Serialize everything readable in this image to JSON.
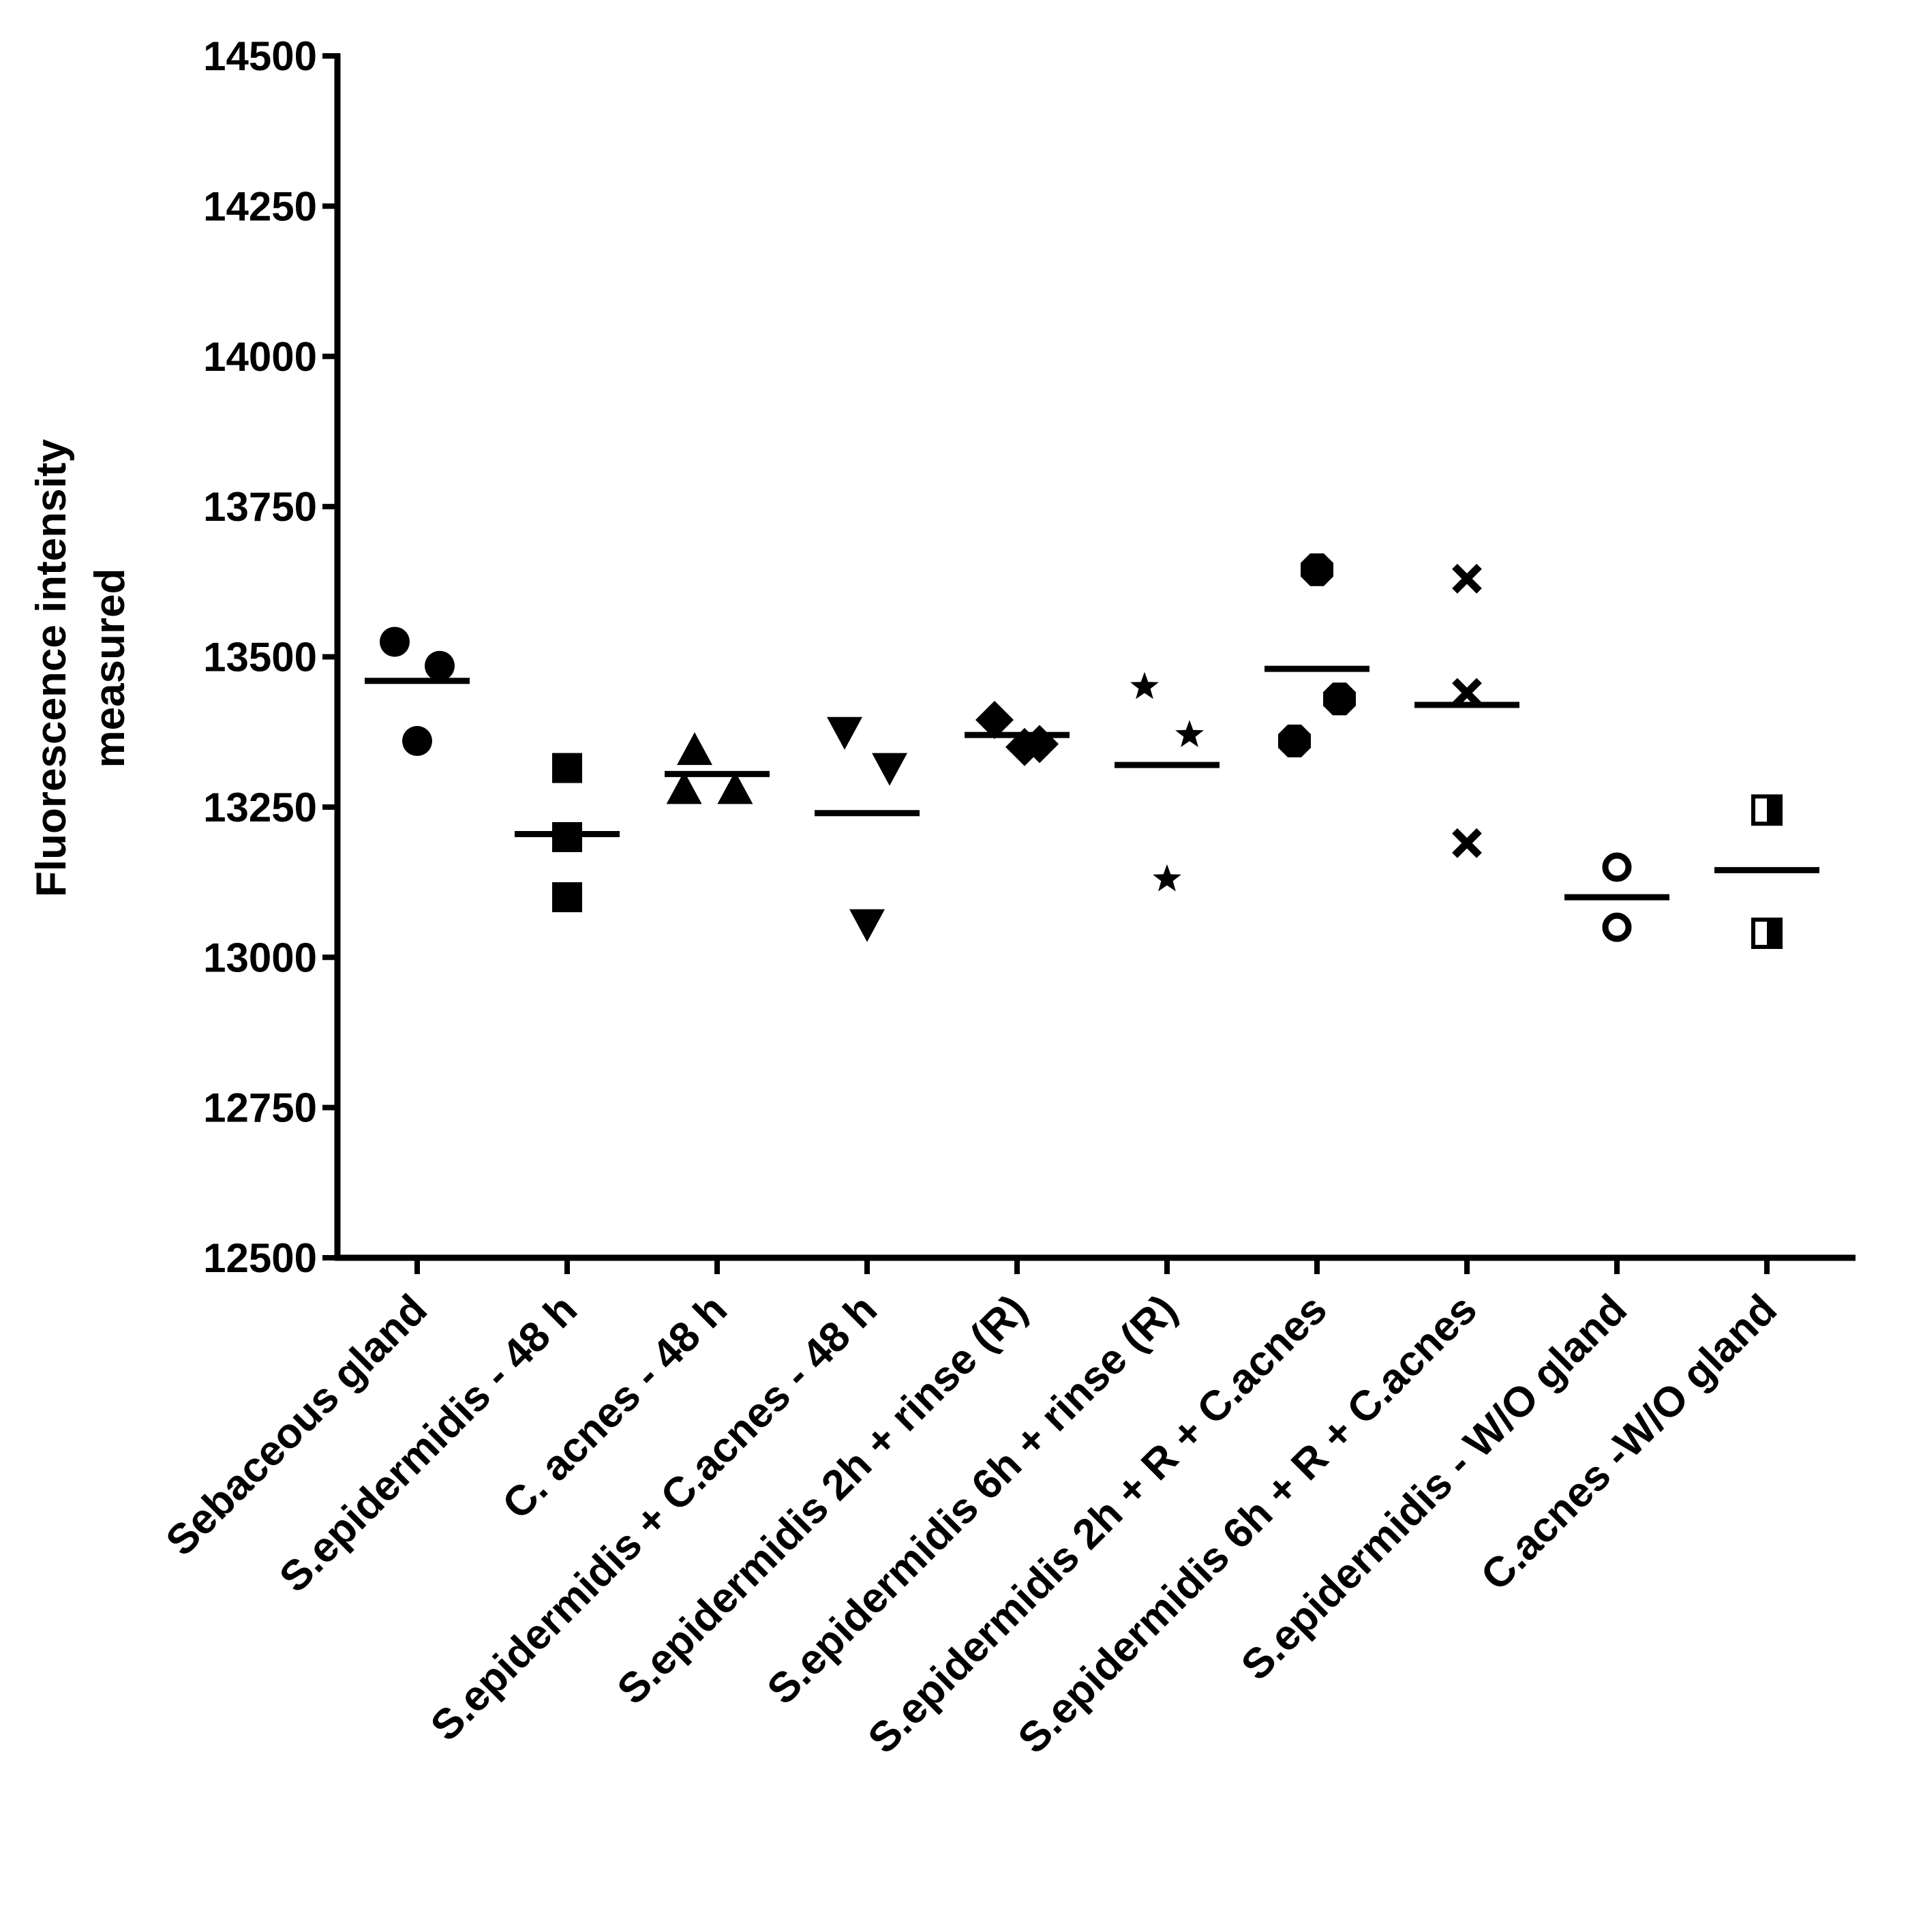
{
  "chart_data": {
    "type": "scatter",
    "title": "",
    "xlabel": "",
    "ylabel": [
      "Fluorescence intensity",
      "measured"
    ],
    "ylim": [
      12500,
      14500
    ],
    "yticks": [
      12500,
      12750,
      13000,
      13250,
      13500,
      13750,
      14000,
      14250,
      14500
    ],
    "grid": false,
    "legend": "none",
    "categories": [
      "Sebaceous gland",
      "S.epidermidis - 48 h",
      "C. acnes - 48 h",
      "S.epidermidis + C.acnes - 48 h",
      "S.epidermidis 2h + rinse (R)",
      "S.epidermidis 6h + rinse (R)",
      "S.epidermidis 2h + R + C.acnes",
      "S.epidermidis 6h + R + C.acnes",
      "S.epidermidis - W/O gland",
      "C.acnes -W/O gland"
    ],
    "series": [
      {
        "name": "Sebaceous gland",
        "marker": "circle",
        "points": [
          {
            "offset": -0.15,
            "value": 13525
          },
          {
            "offset": 0.15,
            "value": 13485
          },
          {
            "offset": 0,
            "value": 13360
          }
        ],
        "mean": 13460
      },
      {
        "name": "S.epidermidis - 48 h",
        "marker": "square",
        "points": [
          {
            "offset": 0,
            "value": 13315
          },
          {
            "offset": 0,
            "value": 13200
          },
          {
            "offset": 0,
            "value": 13100
          }
        ],
        "mean": 13205
      },
      {
        "name": "C. acnes - 48 h",
        "marker": "triangle-up",
        "points": [
          {
            "offset": -0.15,
            "value": 13345
          },
          {
            "offset": 0.12,
            "value": 13280
          },
          {
            "offset": -0.22,
            "value": 13280
          }
        ],
        "mean": 13305
      },
      {
        "name": "S.epidermidis + C.acnes - 48 h",
        "marker": "triangle-down",
        "points": [
          {
            "offset": -0.15,
            "value": 13375
          },
          {
            "offset": 0.15,
            "value": 13315
          },
          {
            "offset": 0,
            "value": 13055
          }
        ],
        "mean": 13240
      },
      {
        "name": "S.epidermidis 2h + rinse (R)",
        "marker": "diamond",
        "points": [
          {
            "offset": -0.15,
            "value": 13395
          },
          {
            "offset": 0.15,
            "value": 13355
          },
          {
            "offset": 0.05,
            "value": 13350
          }
        ],
        "mean": 13370
      },
      {
        "name": "S.epidermidis 6h + rinse (R)",
        "marker": "star",
        "points": [
          {
            "offset": -0.15,
            "value": 13450
          },
          {
            "offset": 0.15,
            "value": 13370
          },
          {
            "offset": 0,
            "value": 13130
          }
        ],
        "mean": 13320
      },
      {
        "name": "S.epidermidis 2h + R + C.acnes",
        "marker": "octagon",
        "points": [
          {
            "offset": 0,
            "value": 13645
          },
          {
            "offset": 0.15,
            "value": 13430
          },
          {
            "offset": -0.15,
            "value": 13360
          }
        ],
        "mean": 13480
      },
      {
        "name": "S.epidermidis 6h + R + C.acnes",
        "marker": "x",
        "points": [
          {
            "offset": 0,
            "value": 13630
          },
          {
            "offset": 0,
            "value": 13440
          },
          {
            "offset": 0,
            "value": 13190
          }
        ],
        "mean": 13420
      },
      {
        "name": "S.epidermidis - W/O gland",
        "marker": "circle-open",
        "points": [
          {
            "offset": 0,
            "value": 13150
          },
          {
            "offset": 0,
            "value": 13050
          }
        ],
        "mean": 13100
      },
      {
        "name": "C.acnes -W/O gland",
        "marker": "half-square",
        "points": [
          {
            "offset": 0,
            "value": 13245
          },
          {
            "offset": 0,
            "value": 13040
          }
        ],
        "mean": 13145
      }
    ]
  }
}
